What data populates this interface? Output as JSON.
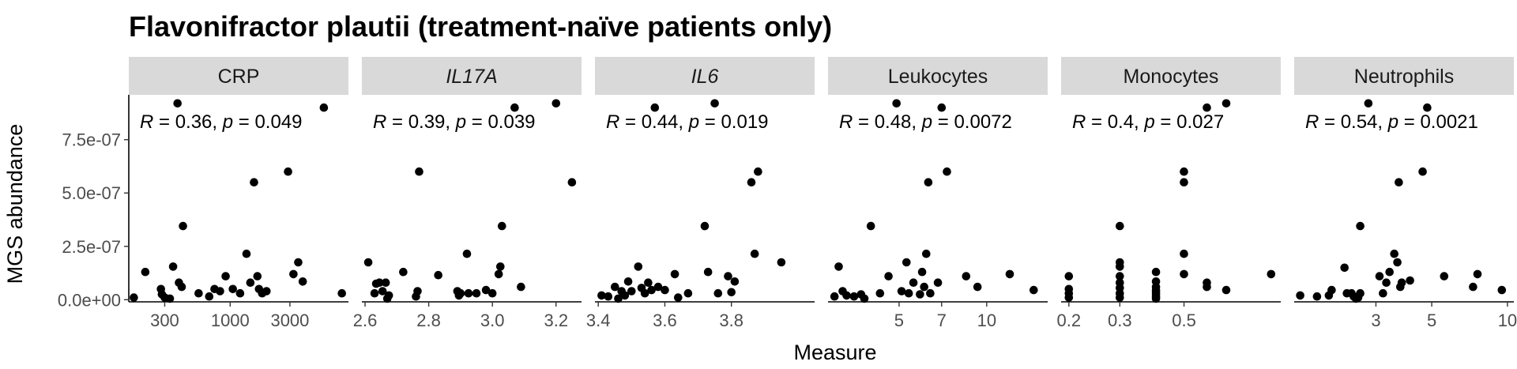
{
  "chart_data": {
    "type": "scatter",
    "title": "Flavonifractor plautii (treatment-naïve patients only)",
    "xlabel": "Measure",
    "ylabel": "MGS abundance",
    "ylim": [
      -1e-08,
      9.6e-07
    ],
    "y_ticks": [
      0,
      2.5e-07,
      5e-07,
      7.5e-07
    ],
    "y_tick_labels": [
      "0.0e+00",
      "2.5e-07",
      "5.0e-07",
      "7.5e-07"
    ],
    "grid": false,
    "facets": [
      {
        "strip": "CRP",
        "italic": false,
        "x_scale": "log10",
        "xlim": [
          155,
          8800
        ],
        "x_ticks": [
          300,
          1000,
          3000
        ],
        "x_tick_labels": [
          "300",
          "1000",
          "3000"
        ],
        "stat": {
          "r": "0.36",
          "p": "0.049"
        },
        "points": [
          [
            170,
            1e-08
          ],
          [
            210,
            1.3e-07
          ],
          [
            280,
            5e-08
          ],
          [
            285,
            2.5e-08
          ],
          [
            300,
            1e-08
          ],
          [
            330,
            5e-09
          ],
          [
            350,
            1.55e-07
          ],
          [
            380,
            9.2e-07
          ],
          [
            390,
            8e-08
          ],
          [
            410,
            6e-08
          ],
          [
            420,
            3.45e-07
          ],
          [
            560,
            3e-08
          ],
          [
            680,
            1.5e-08
          ],
          [
            750,
            5e-08
          ],
          [
            830,
            4e-08
          ],
          [
            920,
            1.1e-07
          ],
          [
            1050,
            5e-08
          ],
          [
            1200,
            3e-08
          ],
          [
            1350,
            2.15e-07
          ],
          [
            1450,
            8e-08
          ],
          [
            1550,
            5.5e-07
          ],
          [
            1650,
            1.1e-07
          ],
          [
            1700,
            5e-08
          ],
          [
            1800,
            3e-08
          ],
          [
            1950,
            4e-08
          ],
          [
            2900,
            6e-07
          ],
          [
            3200,
            1.2e-07
          ],
          [
            3500,
            1.75e-07
          ],
          [
            3800,
            8.5e-08
          ],
          [
            5600,
            9e-07
          ],
          [
            7800,
            3e-08
          ]
        ]
      },
      {
        "strip": "IL17A",
        "italic": true,
        "x_scale": "linear",
        "xlim": [
          2.59,
          3.28
        ],
        "x_ticks": [
          2.6,
          2.8,
          3.0,
          3.2
        ],
        "x_tick_labels": [
          "2.6",
          "2.8",
          "3.0",
          "3.2"
        ],
        "stat": {
          "r": "0.39",
          "p": "0.039"
        },
        "points": [
          [
            2.61,
            1.75e-07
          ],
          [
            2.63,
            3e-08
          ],
          [
            2.635,
            7.5e-08
          ],
          [
            2.645,
            8e-08
          ],
          [
            2.655,
            4e-08
          ],
          [
            2.665,
            8e-08
          ],
          [
            2.67,
            5e-09
          ],
          [
            2.675,
            2e-08
          ],
          [
            2.72,
            1.3e-07
          ],
          [
            2.76,
            1.5e-08
          ],
          [
            2.765,
            4e-08
          ],
          [
            2.77,
            6e-07
          ],
          [
            2.83,
            1.15e-07
          ],
          [
            2.89,
            4e-08
          ],
          [
            2.895,
            2e-08
          ],
          [
            2.9,
            3e-08
          ],
          [
            2.92,
            2.15e-07
          ],
          [
            2.925,
            3e-08
          ],
          [
            2.95,
            3e-08
          ],
          [
            2.98,
            4.5e-08
          ],
          [
            3.0,
            3e-08
          ],
          [
            3.02,
            1.2e-07
          ],
          [
            3.025,
            1.55e-07
          ],
          [
            3.03,
            3.45e-07
          ],
          [
            3.07,
            9e-07
          ],
          [
            3.09,
            6e-08
          ],
          [
            3.2,
            9.2e-07
          ],
          [
            3.25,
            5.5e-07
          ]
        ]
      },
      {
        "strip": "IL6",
        "italic": true,
        "x_scale": "linear",
        "xlim": [
          3.39,
          4.05
        ],
        "x_ticks": [
          3.4,
          3.6,
          3.8
        ],
        "x_tick_labels": [
          "3.4",
          "3.6",
          "3.8"
        ],
        "stat": {
          "r": "0.44",
          "p": "0.019"
        },
        "points": [
          [
            3.41,
            2e-08
          ],
          [
            3.43,
            1.5e-08
          ],
          [
            3.45,
            6e-08
          ],
          [
            3.46,
            5e-09
          ],
          [
            3.47,
            4e-08
          ],
          [
            3.48,
            2e-08
          ],
          [
            3.49,
            8.5e-08
          ],
          [
            3.5,
            4e-08
          ],
          [
            3.52,
            1.55e-07
          ],
          [
            3.53,
            5.5e-08
          ],
          [
            3.54,
            3e-08
          ],
          [
            3.55,
            8e-08
          ],
          [
            3.56,
            4.5e-08
          ],
          [
            3.57,
            9e-07
          ],
          [
            3.58,
            6e-08
          ],
          [
            3.6,
            4.5e-08
          ],
          [
            3.63,
            1.2e-07
          ],
          [
            3.64,
            1e-08
          ],
          [
            3.67,
            3e-08
          ],
          [
            3.72,
            3.45e-07
          ],
          [
            3.73,
            1.3e-07
          ],
          [
            3.75,
            9.2e-07
          ],
          [
            3.76,
            3e-08
          ],
          [
            3.79,
            1.1e-07
          ],
          [
            3.8,
            3.5e-08
          ],
          [
            3.81,
            8.5e-08
          ],
          [
            3.86,
            5.5e-07
          ],
          [
            3.87,
            2.15e-07
          ],
          [
            3.88,
            6e-07
          ],
          [
            3.95,
            1.75e-07
          ]
        ]
      },
      {
        "strip": "Leukocytes",
        "italic": false,
        "x_scale": "log10",
        "xlim": [
          2.85,
          16.2
        ],
        "x_ticks": [
          5,
          7,
          10
        ],
        "x_tick_labels": [
          "5",
          "7",
          "10"
        ],
        "stat": {
          "r": "0.48",
          "p": "0.0072"
        },
        "points": [
          [
            3.0,
            1.5e-08
          ],
          [
            3.1,
            1.55e-07
          ],
          [
            3.2,
            4e-08
          ],
          [
            3.3,
            2e-08
          ],
          [
            3.5,
            1.5e-08
          ],
          [
            3.7,
            2.5e-08
          ],
          [
            3.8,
            5e-09
          ],
          [
            4.0,
            3.45e-07
          ],
          [
            4.3,
            3e-08
          ],
          [
            4.6,
            1.1e-07
          ],
          [
            4.9,
            9.2e-07
          ],
          [
            5.1,
            4e-08
          ],
          [
            5.3,
            1.75e-07
          ],
          [
            5.4,
            3e-08
          ],
          [
            5.6,
            8e-08
          ],
          [
            5.9,
            2.5e-08
          ],
          [
            6.0,
            1.3e-07
          ],
          [
            6.1,
            6e-08
          ],
          [
            6.2,
            2.15e-07
          ],
          [
            6.3,
            5.5e-07
          ],
          [
            6.4,
            3e-08
          ],
          [
            6.8,
            8e-08
          ],
          [
            7.0,
            9e-07
          ],
          [
            7.3,
            6e-07
          ],
          [
            8.5,
            1.1e-07
          ],
          [
            9.3,
            6e-08
          ],
          [
            12.0,
            1.2e-07
          ],
          [
            14.5,
            4.5e-08
          ]
        ]
      },
      {
        "strip": "Monocytes",
        "italic": false,
        "x_scale": "log10",
        "xlim": [
          0.188,
          1.08
        ],
        "x_ticks": [
          0.2,
          0.3,
          0.5
        ],
        "x_tick_labels": [
          "0.2",
          "0.3",
          "0.5"
        ],
        "stat": {
          "r": "0.4",
          "p": "0.027"
        },
        "points": [
          [
            0.2,
            1.1e-07
          ],
          [
            0.2,
            5e-08
          ],
          [
            0.2,
            3e-08
          ],
          [
            0.2,
            1e-08
          ],
          [
            0.3,
            3.45e-07
          ],
          [
            0.3,
            1.75e-07
          ],
          [
            0.3,
            1.55e-07
          ],
          [
            0.3,
            1.1e-07
          ],
          [
            0.3,
            8e-08
          ],
          [
            0.3,
            5.5e-08
          ],
          [
            0.3,
            3e-08
          ],
          [
            0.3,
            1e-08
          ],
          [
            0.4,
            1.3e-07
          ],
          [
            0.4,
            8.5e-08
          ],
          [
            0.4,
            6e-08
          ],
          [
            0.4,
            4.5e-08
          ],
          [
            0.4,
            3.5e-08
          ],
          [
            0.4,
            2.5e-08
          ],
          [
            0.4,
            1.5e-08
          ],
          [
            0.4,
            5e-09
          ],
          [
            0.5,
            6e-07
          ],
          [
            0.5,
            5.5e-07
          ],
          [
            0.5,
            2.15e-07
          ],
          [
            0.5,
            1.2e-07
          ],
          [
            0.6,
            9e-07
          ],
          [
            0.6,
            8e-08
          ],
          [
            0.6,
            6e-08
          ],
          [
            0.7,
            9.2e-07
          ],
          [
            0.7,
            4.5e-08
          ],
          [
            1.0,
            1.2e-07
          ]
        ]
      },
      {
        "strip": "Neutrophils",
        "italic": false,
        "x_scale": "log10",
        "xlim": [
          1.42,
          10.6
        ],
        "x_ticks": [
          3,
          5,
          10
        ],
        "x_tick_labels": [
          "3",
          "5",
          "10"
        ],
        "stat": {
          "r": "0.54",
          "p": "0.0021"
        },
        "points": [
          [
            1.5,
            2e-08
          ],
          [
            1.75,
            1.5e-08
          ],
          [
            1.95,
            2e-08
          ],
          [
            2.0,
            4.5e-08
          ],
          [
            2.25,
            1.5e-07
          ],
          [
            2.3,
            3e-08
          ],
          [
            2.4,
            3e-08
          ],
          [
            2.45,
            1.5e-08
          ],
          [
            2.5,
            5e-09
          ],
          [
            2.55,
            1e-08
          ],
          [
            2.6,
            3.45e-07
          ],
          [
            2.6,
            3e-08
          ],
          [
            2.8,
            9.2e-07
          ],
          [
            3.1,
            1.1e-07
          ],
          [
            3.2,
            3e-08
          ],
          [
            3.3,
            8e-08
          ],
          [
            3.4,
            1.3e-07
          ],
          [
            3.55,
            2.15e-07
          ],
          [
            3.65,
            1.75e-07
          ],
          [
            3.7,
            5.5e-07
          ],
          [
            3.75,
            6e-08
          ],
          [
            3.8,
            8e-08
          ],
          [
            4.1,
            9e-08
          ],
          [
            4.6,
            6e-07
          ],
          [
            4.8,
            9e-07
          ],
          [
            5.6,
            1.1e-07
          ],
          [
            7.3,
            6e-08
          ],
          [
            7.6,
            1.2e-07
          ],
          [
            9.5,
            4.5e-08
          ]
        ]
      }
    ]
  }
}
